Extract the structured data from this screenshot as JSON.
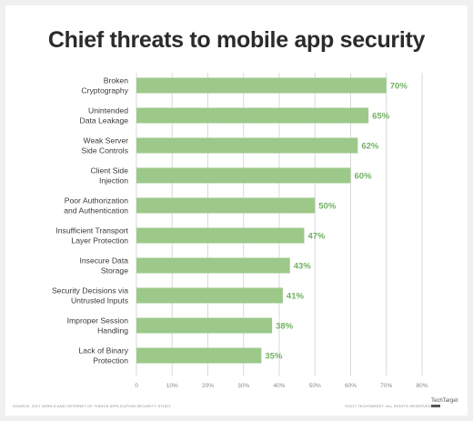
{
  "chart_data": {
    "type": "bar",
    "orientation": "horizontal",
    "title": "Chief threats to mobile app security",
    "categories": [
      [
        "Broken",
        "Cryptography"
      ],
      [
        "Unintended",
        "Data Leakage"
      ],
      [
        "Weak Server",
        "Side Controls"
      ],
      [
        "Client Side",
        "Injection"
      ],
      [
        "Poor Authorization",
        "and Authentication"
      ],
      [
        "Insufficient Transport",
        "Layer Protection"
      ],
      [
        "Insecure Data",
        "Storage"
      ],
      [
        "Security Decisions via",
        "Untrusted Inputs"
      ],
      [
        "Improper Session",
        "Handling"
      ],
      [
        "Lack of Binary",
        "Protection"
      ]
    ],
    "values": [
      70,
      65,
      62,
      60,
      50,
      47,
      43,
      41,
      38,
      35
    ],
    "value_labels": [
      "70%",
      "65%",
      "62%",
      "60%",
      "50%",
      "47%",
      "43%",
      "41%",
      "38%",
      "35%"
    ],
    "xlim": [
      0,
      80
    ],
    "xticks": [
      "0",
      "10%",
      "20%",
      "30%",
      "40%",
      "50%",
      "60%",
      "70%",
      "80%"
    ],
    "grid": true,
    "colors": {
      "bar": "#9cc98a",
      "label": "#72b163",
      "grid": "#d9d9d9",
      "text": "#3a3a3a"
    }
  },
  "footer": {
    "source": "SOURCE: 2017 WORLD AND INTERNET OF THINGS APPLICATION SECURITY STUDY",
    "copyright": "©2017 TECHTARGET. ALL RIGHTS RESERVED",
    "logo": "TechTarget"
  }
}
